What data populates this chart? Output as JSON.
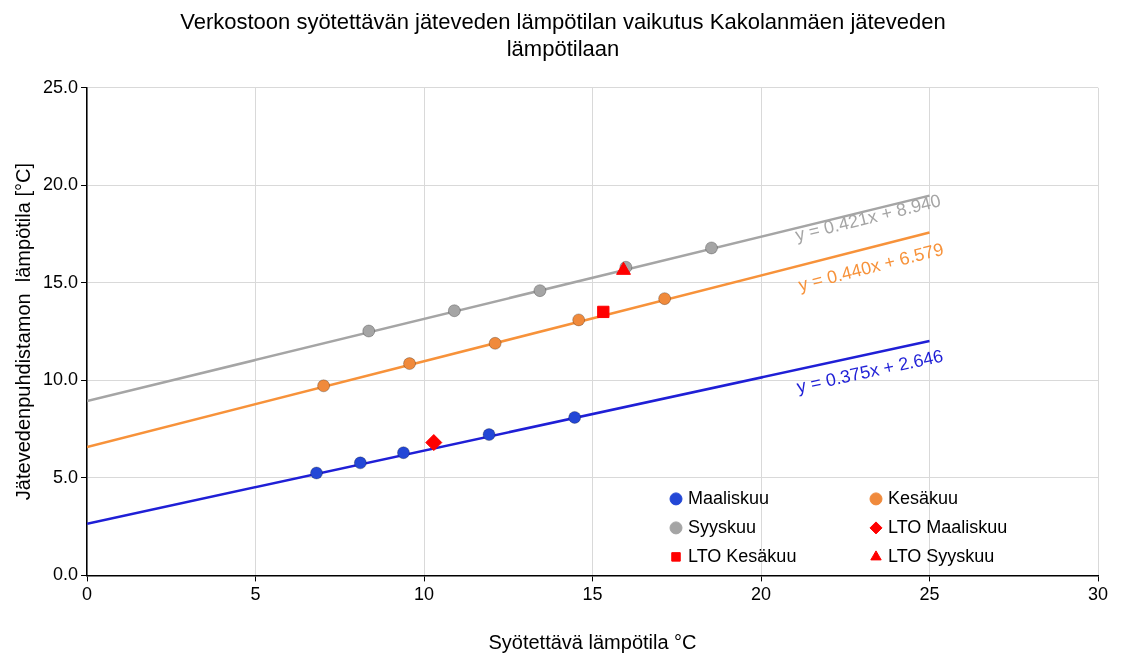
{
  "chart_data": {
    "type": "scatter",
    "title": "Verkostoon syötettävän jäteveden lämpötilan vaikutus Kakolanmäen jäteveden lämpötilaan",
    "xlabel": "Syötettävä lämpötila °C",
    "ylabel": "Jätevedenpuhdistamon  lämpötila [°C]",
    "xlim": [
      0,
      30
    ],
    "xticks": [
      0,
      5,
      10,
      15,
      20,
      25,
      30
    ],
    "ylim": [
      0,
      25
    ],
    "yticks": [
      {
        "value": 0,
        "label": "0.0"
      },
      {
        "value": 5,
        "label": "5.0"
      },
      {
        "value": 10,
        "label": "10.0"
      },
      {
        "value": 15,
        "label": "15.0"
      },
      {
        "value": 20,
        "label": "20.0"
      },
      {
        "value": 25,
        "label": "25.0"
      }
    ],
    "grid": true,
    "legend": "bottom right",
    "series": [
      {
        "name": "Maaliskuu",
        "color": "#2347d6",
        "marker": "circle",
        "x": [
          6.81,
          8.11,
          9.39,
          11.93,
          14.47
        ],
        "values": [
          5.25,
          5.77,
          6.29,
          7.22,
          8.1
        ]
      },
      {
        "name": "Kesäkuu",
        "color": "#f08a3c",
        "marker": "circle",
        "x": [
          7.02,
          9.57,
          12.11,
          14.59,
          17.14
        ],
        "values": [
          9.72,
          10.86,
          11.9,
          13.1,
          14.19
        ]
      },
      {
        "name": "Syyskuu",
        "color": "#a5a5a5",
        "marker": "circle",
        "x": [
          8.36,
          10.9,
          13.44,
          15.99,
          18.53
        ],
        "values": [
          12.53,
          13.57,
          14.6,
          15.8,
          16.79
        ]
      },
      {
        "name": "LTO Maaliskuu",
        "color": "#ff0000",
        "marker": "diamond",
        "x": [
          10.29
        ],
        "values": [
          6.81
        ]
      },
      {
        "name": "LTO Kesäkuu",
        "color": "#ff0000",
        "marker": "square",
        "x": [
          15.32
        ],
        "values": [
          13.51
        ]
      },
      {
        "name": "LTO Syyskuu",
        "color": "#ff0000",
        "marker": "triangle",
        "x": [
          15.92
        ],
        "values": [
          15.64
        ]
      },
      {
        "type": "line",
        "color": "#1f1fd6",
        "marker": "none",
        "x": [
          0,
          25
        ],
        "values": [
          2.65,
          12.02
        ]
      },
      {
        "type": "line",
        "color": "#f7923a",
        "marker": "none",
        "x": [
          0,
          25
        ],
        "values": [
          6.58,
          17.58
        ]
      },
      {
        "type": "line",
        "color": "#a5a5a5",
        "marker": "none",
        "x": [
          0,
          25
        ],
        "values": [
          8.94,
          19.47
        ]
      }
    ],
    "annotations": [
      "y = 0.375x + 2.646",
      "y = 0.440x + 6.579",
      "y = 0.421x + 8.940"
    ]
  }
}
